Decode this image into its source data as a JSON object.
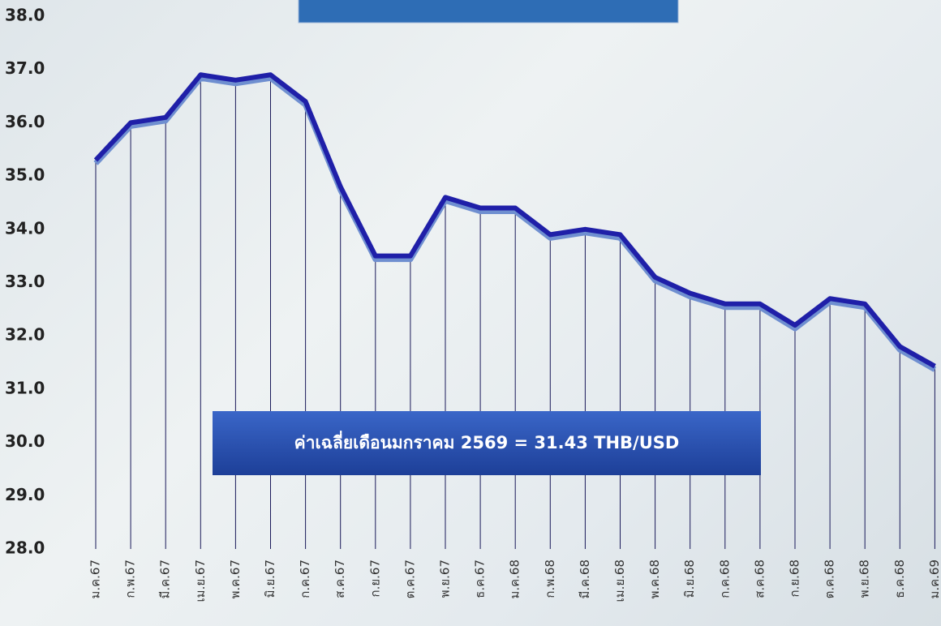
{
  "chart_data": {
    "type": "line",
    "categories": [
      "ม.ค.67",
      "ก.พ.67",
      "มี.ค.67",
      "เม.ย.67",
      "พ.ค.67",
      "มิ.ย.67",
      "ก.ค.67",
      "ส.ค.67",
      "ก.ย.67",
      "ต.ค.67",
      "พ.ย.67",
      "ธ.ค.67",
      "ม.ค.68",
      "ก.พ.68",
      "มี.ค.68",
      "เม.ย.68",
      "พ.ค.68",
      "มิ.ย.68",
      "ก.ค.68",
      "ส.ค.68",
      "ก.ย.68",
      "ต.ค.68",
      "พ.ย.68",
      "ธ.ค.68",
      "ม.ค.69"
    ],
    "series": [
      {
        "name": "THB/USD",
        "color": "#1f1fa8",
        "values": [
          35.3,
          36.0,
          36.1,
          36.9,
          36.8,
          36.9,
          36.4,
          34.8,
          33.5,
          33.5,
          34.6,
          34.4,
          34.4,
          33.9,
          34.0,
          33.9,
          33.1,
          32.8,
          32.6,
          32.6,
          32.2,
          32.7,
          32.6,
          31.8,
          31.43
        ]
      }
    ],
    "ylim": [
      28,
      38
    ],
    "yticks": [
      {
        "value": 28,
        "label": "28.0"
      },
      {
        "value": 29,
        "label": "29.0"
      },
      {
        "value": 30,
        "label": "30.0"
      },
      {
        "value": 31,
        "label": "31.0"
      },
      {
        "value": 32,
        "label": "32.0"
      },
      {
        "value": 33,
        "label": "33.0"
      },
      {
        "value": 34,
        "label": "34.0"
      },
      {
        "value": 35,
        "label": "35.0"
      },
      {
        "value": 36,
        "label": "36.0"
      },
      {
        "value": 37,
        "label": "37.0"
      },
      {
        "value": 38,
        "label": "38.0"
      }
    ],
    "drop_lines": true,
    "annotation": "ค่าเฉลี่ยเดือนมกราคม 2569 = 31.43 THB/USD"
  }
}
